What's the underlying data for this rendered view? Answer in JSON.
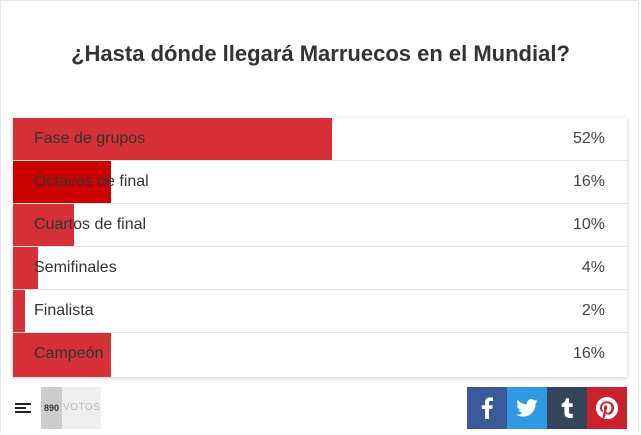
{
  "poll": {
    "title": "¿Hasta dónde llegará Marruecos en el Mundial?",
    "options": [
      {
        "label": "Fase de grupos",
        "percent_text": "52%",
        "value": 52,
        "color": "#d63038"
      },
      {
        "label": "Octavos de final",
        "percent_text": "16%",
        "value": 16,
        "color": "#cc0000"
      },
      {
        "label": "Cuartos de final",
        "percent_text": "10%",
        "value": 10,
        "color": "#d63038"
      },
      {
        "label": "Semifinales",
        "percent_text": "4%",
        "value": 4,
        "color": "#d63038"
      },
      {
        "label": "Finalista",
        "percent_text": "2%",
        "value": 2,
        "color": "#d63038"
      },
      {
        "label": "Campeón",
        "percent_text": "16%",
        "value": 16,
        "color": "#d63038"
      }
    ]
  },
  "footer": {
    "list_icon": "list-lines-icon",
    "votes_count": "890",
    "votes_label": "VOTOS",
    "social": [
      {
        "name": "facebook",
        "icon": "facebook-icon",
        "color": "#3b5998"
      },
      {
        "name": "twitter",
        "icon": "twitter-icon",
        "color": "#2f9ae3"
      },
      {
        "name": "tumblr",
        "icon": "tumblr-icon",
        "color": "#35465c"
      },
      {
        "name": "pinterest",
        "icon": "pinterest-icon",
        "color": "#c8232c"
      }
    ]
  }
}
